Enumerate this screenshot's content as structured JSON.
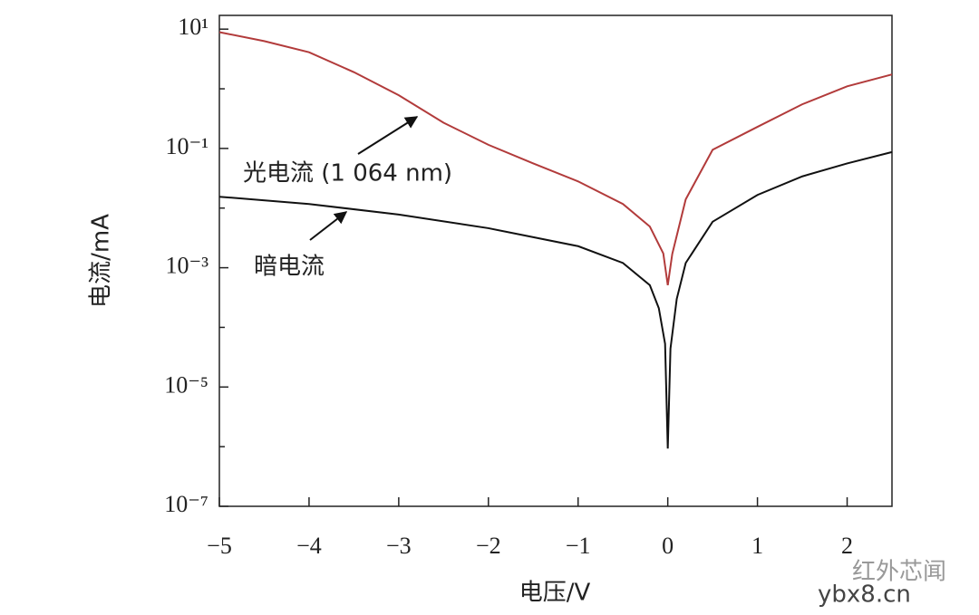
{
  "chart_data": {
    "type": "line",
    "xlabel": "电压/V",
    "ylabel": "电流/mA",
    "xlim": [
      -5,
      2.5
    ],
    "xticks": [
      {
        "value": -5,
        "label": "−5"
      },
      {
        "value": -4,
        "label": "−4"
      },
      {
        "value": -3,
        "label": "−3"
      },
      {
        "value": -2,
        "label": "−2"
      },
      {
        "value": -1,
        "label": "−1"
      },
      0,
      1,
      2
    ],
    "ylim": [
      1e-07,
      17
    ],
    "log_y": true,
    "yticks": [
      {
        "value": 10,
        "label": "10¹"
      },
      {
        "value": 0.1,
        "label": "10⁻¹"
      },
      {
        "value": 0.001,
        "label": "10⁻³"
      },
      {
        "value": 1e-05,
        "label": "10⁻⁵"
      },
      {
        "value": 1e-07,
        "label": "10⁻⁷"
      }
    ],
    "yminorticks": [
      1,
      0.01,
      0.0001,
      1e-06
    ],
    "series": [
      {
        "name": "光电流 (1 064 nm)",
        "color": "#b23b3b",
        "x": [
          -5,
          -4.5,
          -4,
          -3.5,
          -3,
          -2.5,
          -2,
          -1.5,
          -1,
          -0.5,
          -0.2,
          -0.05,
          0,
          0.05,
          0.2,
          0.5,
          1,
          1.5,
          2,
          2.5
        ],
        "values": [
          8.9,
          6.3,
          4.1,
          1.9,
          0.78,
          0.27,
          0.115,
          0.056,
          0.028,
          0.0117,
          0.0049,
          0.00174,
          0.00051,
          0.0017,
          0.014,
          0.095,
          0.23,
          0.55,
          1.1,
          1.74
        ]
      },
      {
        "name": "暗电流",
        "color": "#111111",
        "x": [
          -5,
          -4,
          -3,
          -2,
          -1,
          -0.5,
          -0.2,
          -0.1,
          -0.03,
          0,
          0.03,
          0.1,
          0.2,
          0.5,
          1,
          1.5,
          2,
          2.5
        ],
        "values": [
          0.0155,
          0.0117,
          0.0078,
          0.0046,
          0.0023,
          0.0012,
          0.00051,
          0.00021,
          5.3e-05,
          9.3e-07,
          4.4e-05,
          0.0003,
          0.0012,
          0.0059,
          0.0166,
          0.034,
          0.056,
          0.087
        ]
      }
    ],
    "watermark": [
      "红外芯闻",
      "ybx8.cn"
    ]
  }
}
